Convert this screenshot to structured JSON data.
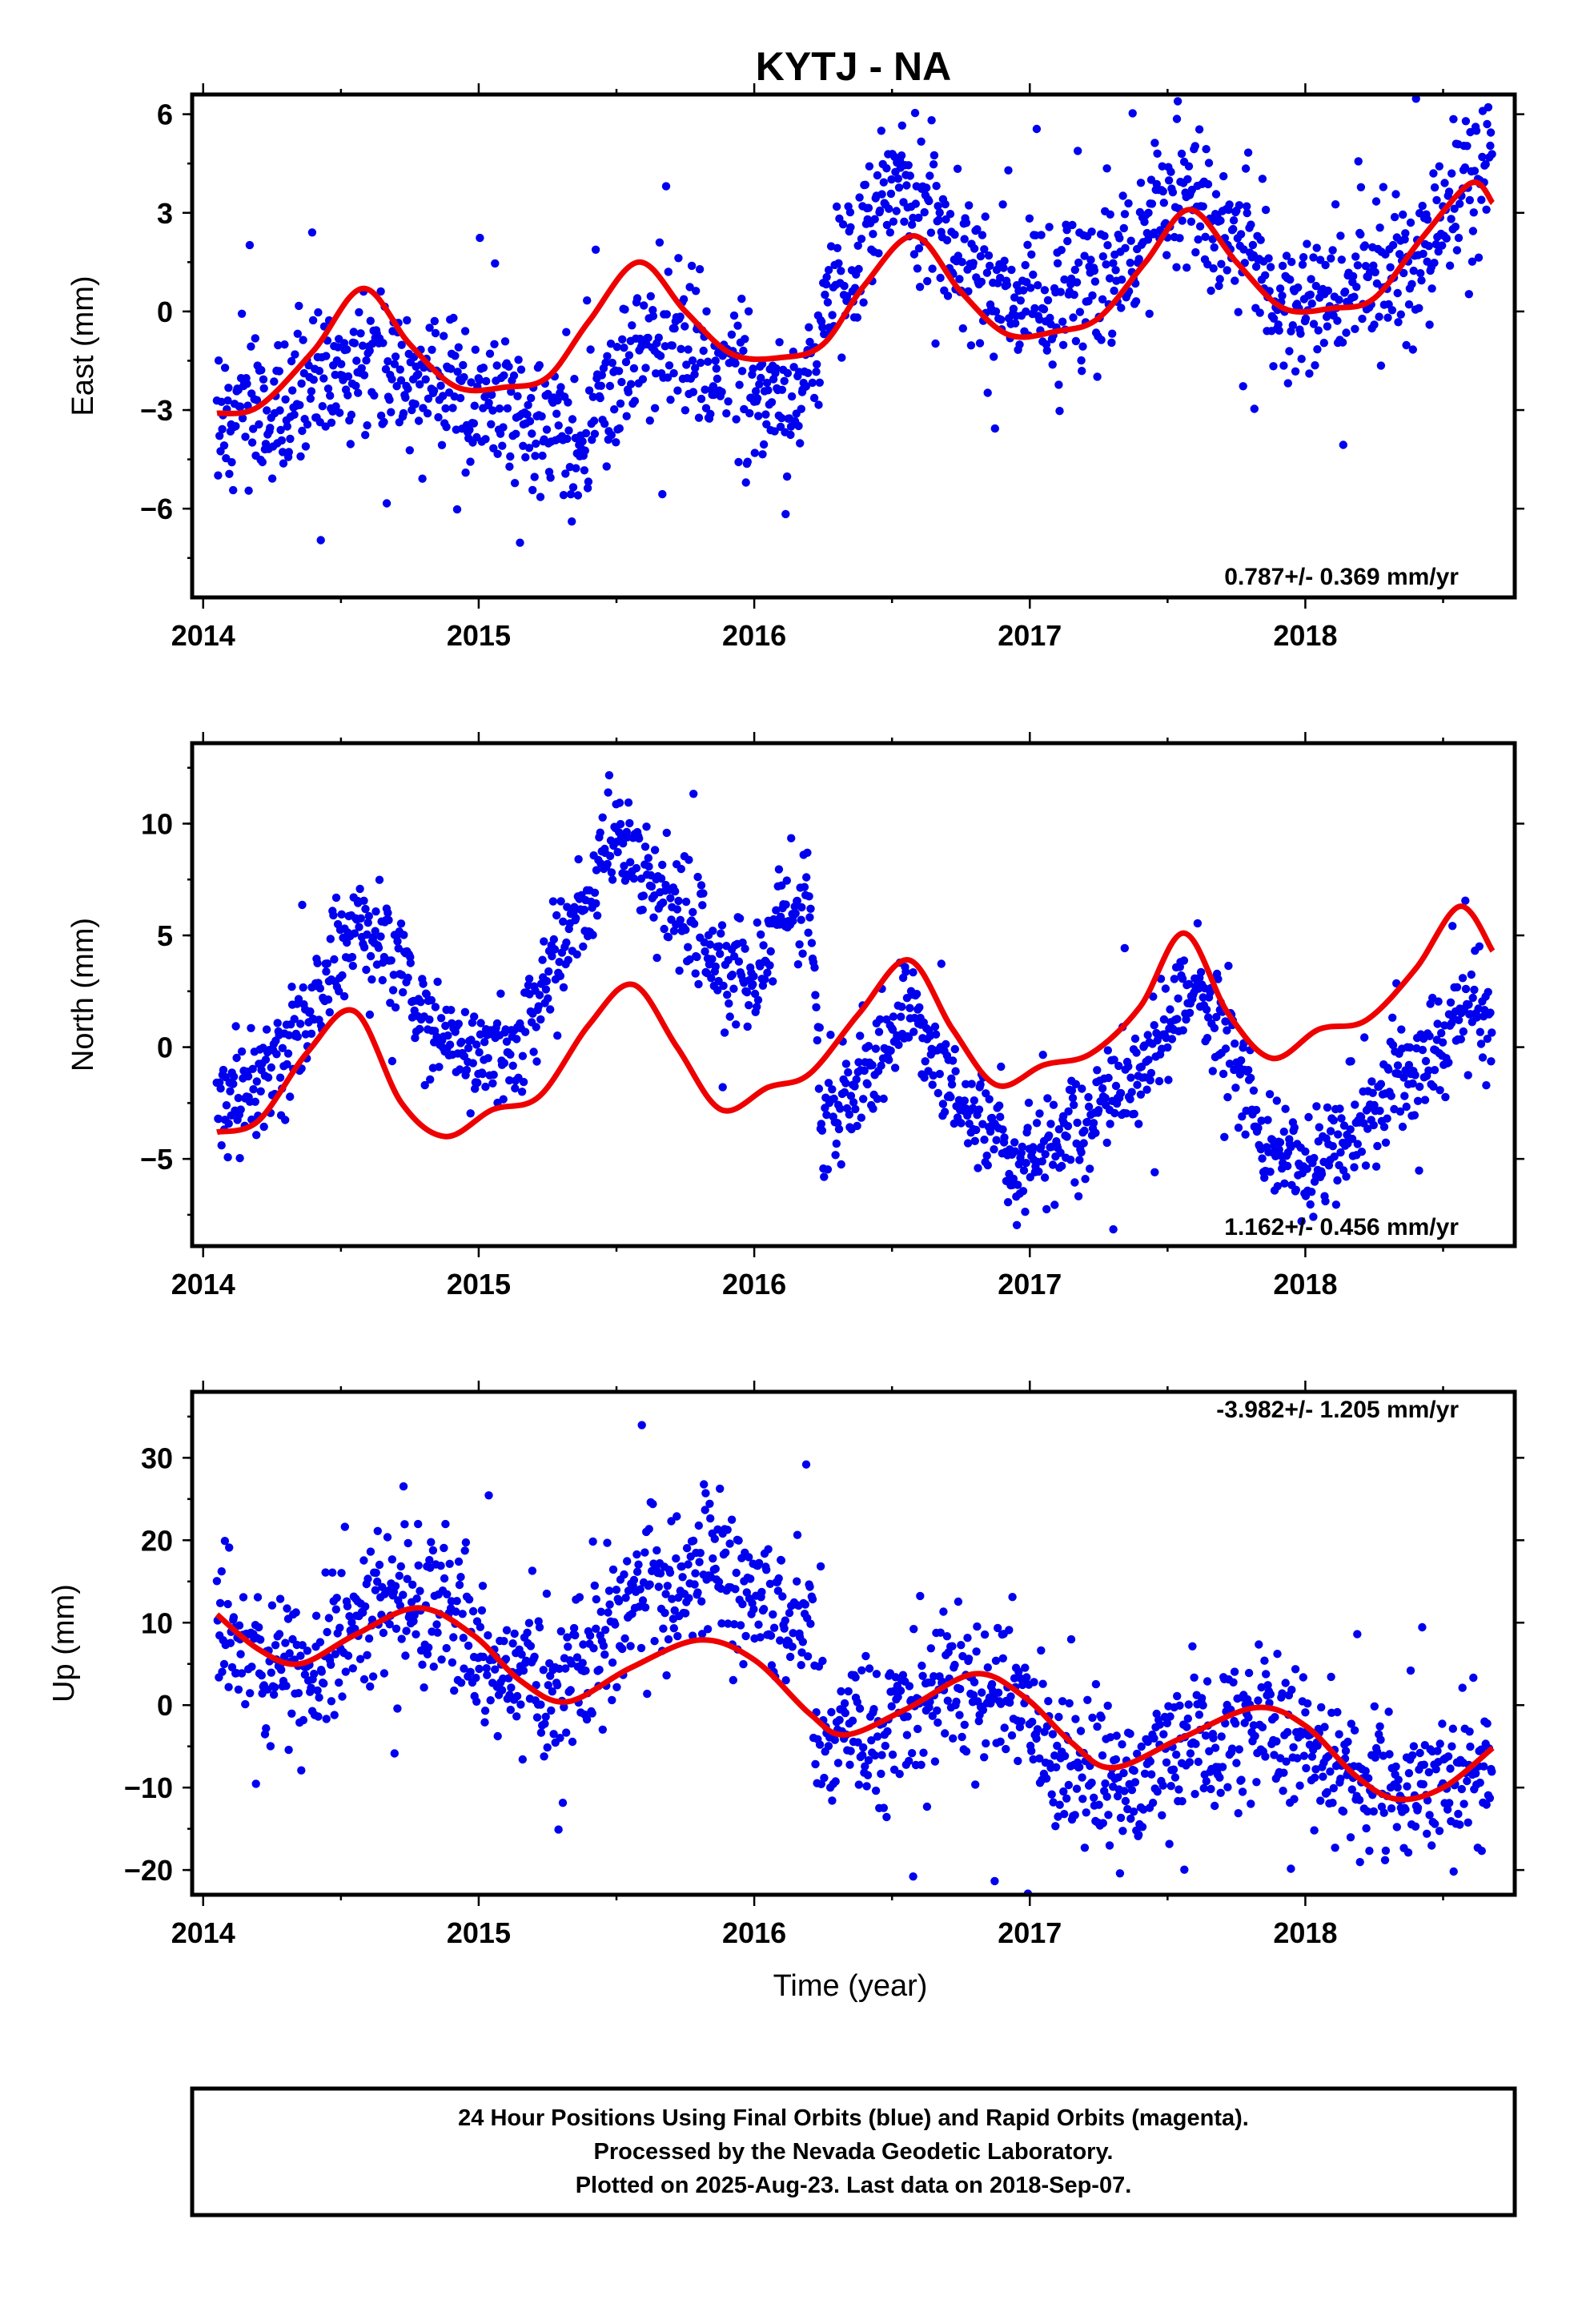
{
  "title": "KYTJ - NA",
  "xlabel": "Time (year)",
  "footer": [
    "24 Hour Positions Using Final Orbits (blue) and Rapid Orbits (magenta).",
    "Processed by the Nevada Geodetic Laboratory.",
    "Plotted on 2025-Aug-23. Last data on 2018-Sep-07."
  ],
  "colors": {
    "data": "#0000ee",
    "fit": "#ee0000",
    "frame": "#000000"
  },
  "chart_data": [
    {
      "type": "scatter",
      "component": "east",
      "ylabel": "East (mm)",
      "rate_label": "0.787+/- 0.369 mm/yr",
      "xlim": [
        2013.96,
        2018.76
      ],
      "ylim": [
        -8.7,
        6.6
      ],
      "yticks": [
        -6,
        -3,
        0,
        3,
        6
      ],
      "xticks": [
        2014,
        2015,
        2016,
        2017,
        2018
      ],
      "grid": false,
      "series": [
        {
          "kind": "observations",
          "density_per_year": 310,
          "noise_mm": 1.15,
          "outlier_fraction": 0.015,
          "mean_trend": [
            [
              2014.05,
              -3.0
            ],
            [
              2014.2,
              -3.6
            ],
            [
              2014.4,
              -2.3
            ],
            [
              2014.6,
              -1.5
            ],
            [
              2014.8,
              -2.3
            ],
            [
              2015.0,
              -3.0
            ],
            [
              2015.2,
              -3.6
            ],
            [
              2015.35,
              -4.2
            ],
            [
              2015.5,
              -2.2
            ],
            [
              2015.6,
              -0.8
            ],
            [
              2015.8,
              -1.6
            ],
            [
              2016.0,
              -2.2
            ],
            [
              2016.15,
              -2.8
            ],
            [
              2016.3,
              0.8
            ],
            [
              2016.5,
              4.0
            ],
            [
              2016.7,
              2.5
            ],
            [
              2016.85,
              0.6
            ],
            [
              2017.1,
              0.2
            ],
            [
              2017.3,
              1.2
            ],
            [
              2017.55,
              3.8
            ],
            [
              2017.75,
              2.3
            ],
            [
              2017.9,
              0.2
            ],
            [
              2018.05,
              -0.2
            ],
            [
              2018.2,
              0.8
            ],
            [
              2018.4,
              1.6
            ],
            [
              2018.55,
              3.5
            ],
            [
              2018.68,
              4.5
            ]
          ]
        },
        {
          "kind": "model",
          "values": [
            [
              2014.05,
              -3.1
            ],
            [
              2014.2,
              -2.9
            ],
            [
              2014.4,
              -1.2
            ],
            [
              2014.58,
              0.7
            ],
            [
              2014.75,
              -1.0
            ],
            [
              2014.92,
              -2.3
            ],
            [
              2015.1,
              -2.3
            ],
            [
              2015.25,
              -2.0
            ],
            [
              2015.4,
              -0.3
            ],
            [
              2015.58,
              1.5
            ],
            [
              2015.75,
              0.0
            ],
            [
              2015.92,
              -1.3
            ],
            [
              2016.1,
              -1.4
            ],
            [
              2016.25,
              -1.0
            ],
            [
              2016.4,
              0.8
            ],
            [
              2016.58,
              2.3
            ],
            [
              2016.75,
              0.6
            ],
            [
              2016.92,
              -0.7
            ],
            [
              2017.1,
              -0.6
            ],
            [
              2017.25,
              -0.2
            ],
            [
              2017.42,
              1.5
            ],
            [
              2017.58,
              3.1
            ],
            [
              2017.75,
              1.5
            ],
            [
              2017.92,
              0.1
            ],
            [
              2018.1,
              0.1
            ],
            [
              2018.25,
              0.4
            ],
            [
              2018.42,
              2.2
            ],
            [
              2018.6,
              3.9
            ],
            [
              2018.68,
              3.3
            ]
          ]
        }
      ]
    },
    {
      "type": "scatter",
      "component": "north",
      "ylabel": "North (mm)",
      "rate_label": "1.162+/- 0.456 mm/yr",
      "xlim": [
        2013.96,
        2018.76
      ],
      "ylim": [
        -8.9,
        13.6
      ],
      "yticks": [
        -5,
        0,
        5,
        10
      ],
      "xticks": [
        2014,
        2015,
        2016,
        2017,
        2018
      ],
      "grid": false,
      "series": [
        {
          "kind": "observations",
          "density_per_year": 310,
          "noise_mm": 1.2,
          "outlier_fraction": 0.015,
          "mean_trend": [
            [
              2014.05,
              -2.5
            ],
            [
              2014.2,
              -1.5
            ],
            [
              2014.35,
              0.5
            ],
            [
              2014.55,
              5.8
            ],
            [
              2014.7,
              4.0
            ],
            [
              2014.85,
              0.2
            ],
            [
              2015.0,
              -0.5
            ],
            [
              2015.15,
              0.2
            ],
            [
              2015.3,
              4.0
            ],
            [
              2015.5,
              9.5
            ],
            [
              2015.65,
              7.0
            ],
            [
              2015.85,
              4.0
            ],
            [
              2016.0,
              3.0
            ],
            [
              2016.1,
              6.0
            ],
            [
              2016.2,
              6.5
            ],
            [
              2016.25,
              -3.5
            ],
            [
              2016.4,
              -1.5
            ],
            [
              2016.55,
              1.8
            ],
            [
              2016.75,
              -2.5
            ],
            [
              2016.95,
              -5.5
            ],
            [
              2017.2,
              -3.5
            ],
            [
              2017.4,
              -1.0
            ],
            [
              2017.6,
              3.0
            ],
            [
              2017.72,
              0.5
            ],
            [
              2017.85,
              -4.0
            ],
            [
              2018.0,
              -5.5
            ],
            [
              2018.2,
              -3.5
            ],
            [
              2018.45,
              -0.5
            ],
            [
              2018.6,
              2.5
            ],
            [
              2018.68,
              1.0
            ]
          ]
        },
        {
          "kind": "model",
          "values": [
            [
              2014.05,
              -3.8
            ],
            [
              2014.2,
              -3.3
            ],
            [
              2014.38,
              -0.2
            ],
            [
              2014.55,
              1.6
            ],
            [
              2014.72,
              -2.5
            ],
            [
              2014.88,
              -4.0
            ],
            [
              2015.05,
              -2.8
            ],
            [
              2015.22,
              -2.2
            ],
            [
              2015.4,
              1.0
            ],
            [
              2015.56,
              2.8
            ],
            [
              2015.72,
              0.0
            ],
            [
              2015.88,
              -2.8
            ],
            [
              2016.05,
              -1.8
            ],
            [
              2016.2,
              -1.2
            ],
            [
              2016.38,
              1.5
            ],
            [
              2016.56,
              3.9
            ],
            [
              2016.72,
              0.8
            ],
            [
              2016.88,
              -1.7
            ],
            [
              2017.05,
              -0.8
            ],
            [
              2017.22,
              -0.3
            ],
            [
              2017.4,
              1.8
            ],
            [
              2017.56,
              5.1
            ],
            [
              2017.72,
              1.5
            ],
            [
              2017.88,
              -0.5
            ],
            [
              2018.05,
              0.8
            ],
            [
              2018.22,
              1.2
            ],
            [
              2018.4,
              3.5
            ],
            [
              2018.56,
              6.3
            ],
            [
              2018.68,
              4.3
            ]
          ]
        }
      ]
    },
    {
      "type": "scatter",
      "component": "up",
      "ylabel": "Up (mm)",
      "rate_label": "-3.982+/- 1.205 mm/yr",
      "xlim": [
        2013.96,
        2018.76
      ],
      "ylim": [
        -23,
        38
      ],
      "yticks": [
        -20,
        -10,
        0,
        10,
        20,
        30
      ],
      "xticks": [
        2014,
        2015,
        2016,
        2017,
        2018
      ],
      "grid": false,
      "series": [
        {
          "kind": "observations",
          "density_per_year": 310,
          "noise_mm": 4.6,
          "outlier_fraction": 0.02,
          "mean_trend": [
            [
              2014.05,
              9.0
            ],
            [
              2014.2,
              6.0
            ],
            [
              2014.35,
              3.5
            ],
            [
              2014.6,
              12.0
            ],
            [
              2014.8,
              12.5
            ],
            [
              2015.0,
              7.0
            ],
            [
              2015.2,
              2.0
            ],
            [
              2015.35,
              4.0
            ],
            [
              2015.6,
              14.0
            ],
            [
              2015.85,
              17.0
            ],
            [
              2016.05,
              12.0
            ],
            [
              2016.2,
              10.0
            ],
            [
              2016.25,
              -4.0
            ],
            [
              2016.45,
              -4.0
            ],
            [
              2016.7,
              1.5
            ],
            [
              2016.9,
              3.5
            ],
            [
              2017.1,
              -6.0
            ],
            [
              2017.35,
              -10.0
            ],
            [
              2017.6,
              -5.0
            ],
            [
              2017.85,
              -2.5
            ],
            [
              2018.05,
              -7.0
            ],
            [
              2018.25,
              -11.0
            ],
            [
              2018.5,
              -10.0
            ],
            [
              2018.68,
              -6.0
            ]
          ]
        },
        {
          "kind": "model",
          "values": [
            [
              2014.05,
              11.0
            ],
            [
              2014.2,
              6.8
            ],
            [
              2014.35,
              5.0
            ],
            [
              2014.55,
              8.5
            ],
            [
              2014.78,
              11.8
            ],
            [
              2014.98,
              8.5
            ],
            [
              2015.15,
              3.0
            ],
            [
              2015.32,
              0.4
            ],
            [
              2015.55,
              4.5
            ],
            [
              2015.8,
              7.9
            ],
            [
              2016.0,
              5.5
            ],
            [
              2016.2,
              -1.0
            ],
            [
              2016.33,
              -3.6
            ],
            [
              2016.55,
              -0.5
            ],
            [
              2016.8,
              3.8
            ],
            [
              2016.98,
              1.0
            ],
            [
              2017.15,
              -4.5
            ],
            [
              2017.3,
              -7.6
            ],
            [
              2017.55,
              -4.0
            ],
            [
              2017.82,
              -0.3
            ],
            [
              2018.0,
              -2.5
            ],
            [
              2018.18,
              -8.5
            ],
            [
              2018.33,
              -11.4
            ],
            [
              2018.5,
              -10.0
            ],
            [
              2018.68,
              -5.2
            ]
          ]
        }
      ]
    }
  ]
}
